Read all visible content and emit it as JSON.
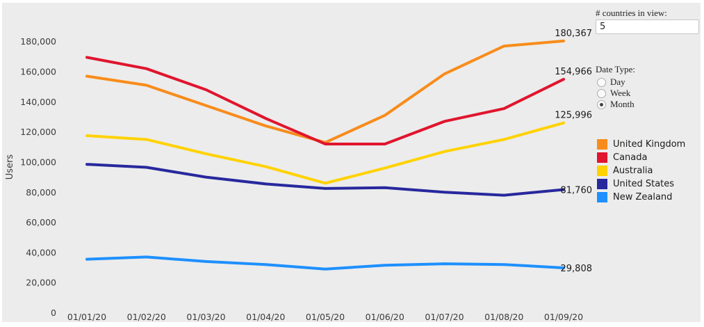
{
  "background": "#ececec",
  "panel": {
    "countries_label": "# countries in view:",
    "countries_value": "5",
    "date_type_label": "Date Type:",
    "date_options": [
      {
        "label": "Day",
        "selected": false
      },
      {
        "label": "Week",
        "selected": false
      },
      {
        "label": "Month",
        "selected": true
      }
    ]
  },
  "chart_data": {
    "type": "line",
    "title": "",
    "xlabel": "",
    "ylabel": "Users",
    "x": [
      "01/01/20",
      "01/02/20",
      "01/03/20",
      "01/04/20",
      "01/05/20",
      "01/06/20",
      "01/07/20",
      "01/08/20",
      "01/09/20"
    ],
    "yticks": [
      0,
      20000,
      40000,
      60000,
      80000,
      100000,
      120000,
      140000,
      160000,
      180000
    ],
    "ylim": [
      0,
      190000
    ],
    "grid": false,
    "legend_position": "right",
    "series": [
      {
        "name": "United Kingdom",
        "color": "#f88c1b",
        "end_label": "180,367",
        "values": [
          157000,
          151000,
          137500,
          124000,
          113000,
          131000,
          158500,
          177000,
          180367
        ]
      },
      {
        "name": "Canada",
        "color": "#e0152e",
        "end_label": "154,966",
        "values": [
          169500,
          162000,
          148000,
          129000,
          112000,
          112000,
          127000,
          135500,
          154966
        ]
      },
      {
        "name": "Australia",
        "color": "#ffd200",
        "end_label": "125,996",
        "values": [
          117500,
          115000,
          105500,
          97000,
          86000,
          96000,
          107000,
          115000,
          125996
        ]
      },
      {
        "name": "United States",
        "color": "#28289e",
        "end_label": "81,760",
        "values": [
          98500,
          96500,
          90000,
          85500,
          82500,
          83000,
          80000,
          78000,
          81760
        ]
      },
      {
        "name": "New Zealand",
        "color": "#1e90ff",
        "end_label": "29,808",
        "values": [
          35500,
          37000,
          34000,
          32000,
          29000,
          31500,
          32500,
          32000,
          29808
        ]
      }
    ]
  }
}
